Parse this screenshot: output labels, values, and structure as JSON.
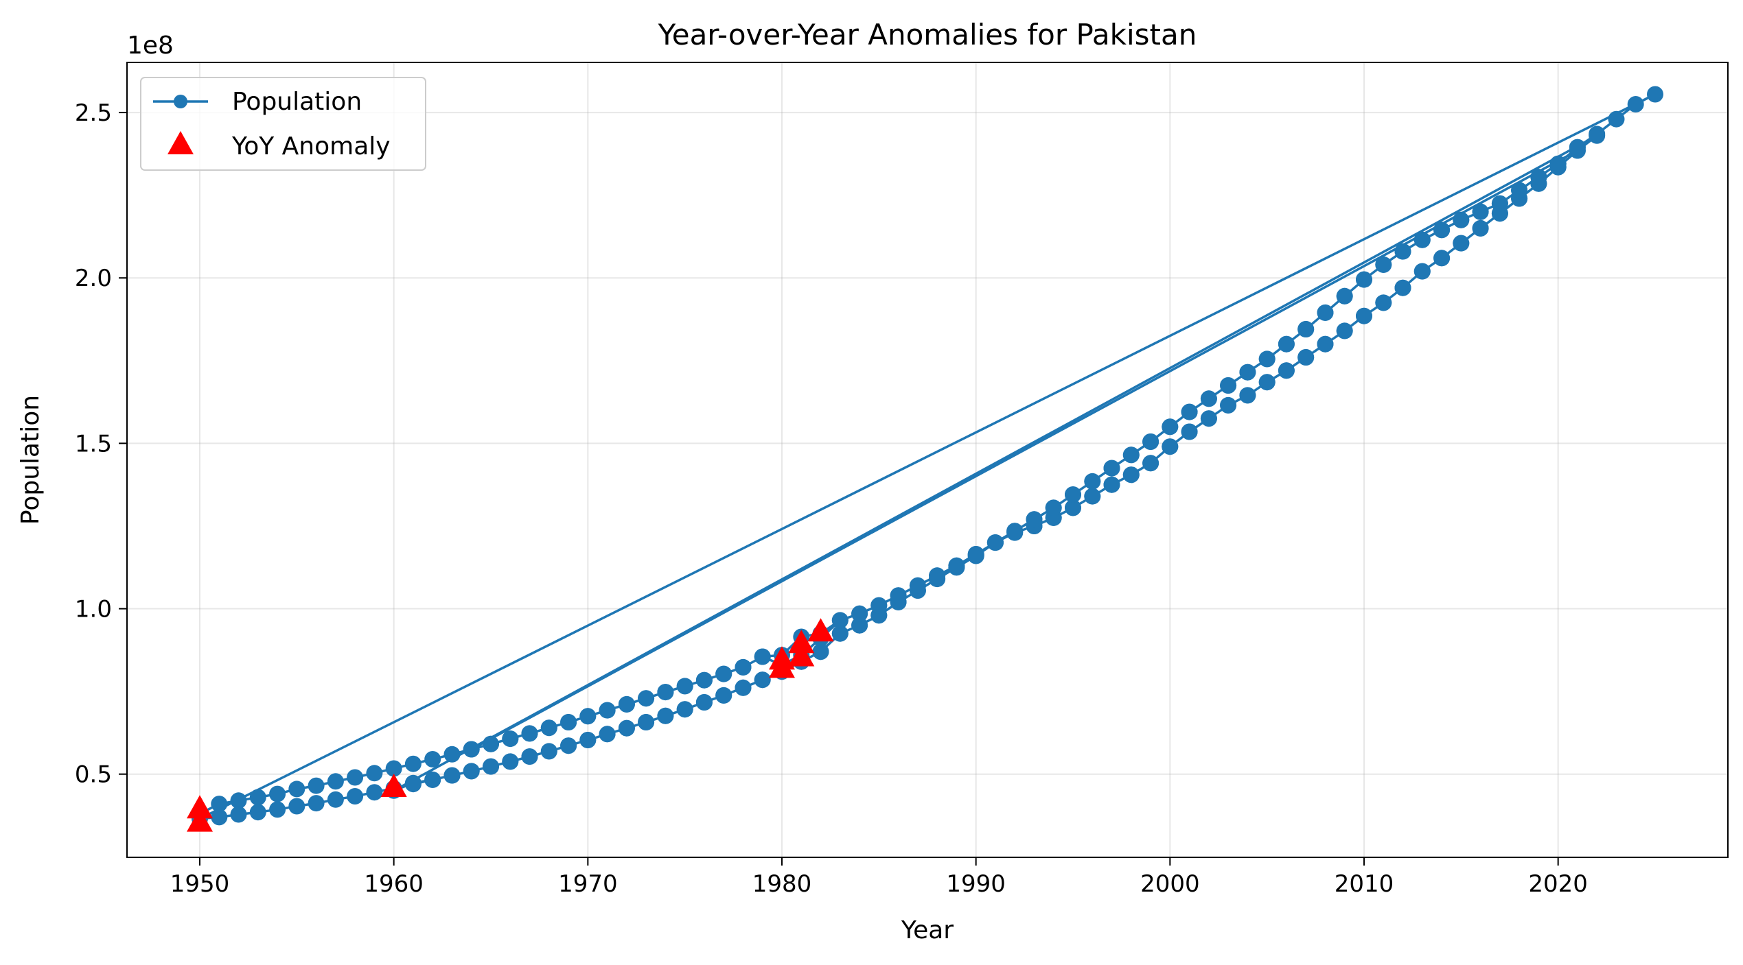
{
  "chart_data": {
    "type": "line",
    "title": "Year-over-Year Anomalies for Pakistan",
    "xlabel": "Year",
    "ylabel": "Population",
    "y_offset_label": "1e8",
    "xlim": [
      1946.25,
      2028.75
    ],
    "ylim": [
      0.2485,
      2.6515
    ],
    "y_scale": 100000000,
    "x_ticks": [
      1950,
      1960,
      1970,
      1980,
      1990,
      2000,
      2010,
      2020
    ],
    "x_tick_labels": [
      "1950",
      "1960",
      "1970",
      "1980",
      "1990",
      "2000",
      "2010",
      "2020"
    ],
    "y_ticks": [
      0.5,
      1.0,
      1.5,
      2.0,
      2.5
    ],
    "y_tick_labels": [
      "0.5",
      "1.0",
      "1.5",
      "2.0",
      "2.5"
    ],
    "grid": true,
    "legend_position": "upper-left",
    "colors": {
      "population": "#1f77b4",
      "anomaly": "#ff0000"
    },
    "legend": [
      {
        "label": "Population",
        "marker": "line-circle"
      },
      {
        "label": "YoY Anomaly",
        "marker": "triangle"
      }
    ],
    "series": [
      {
        "name": "Population",
        "segments": [
          {
            "x": [
              1950,
              1951,
              1952,
              1953,
              1954,
              1955,
              1956,
              1957,
              1958,
              1959,
              1960,
              1961,
              1962,
              1963,
              1964,
              1965,
              1966,
              1967,
              1968,
              1969,
              1970,
              1971,
              1972,
              1973,
              1974,
              1975,
              1976,
              1977,
              1978,
              1979,
              1980,
              1981,
              1982,
              1983,
              1984,
              1985,
              1986,
              1987,
              1988,
              1989,
              1990,
              1991,
              1992,
              1993,
              1994,
              1995,
              1996,
              1997,
              1998,
              1999,
              2000,
              2001,
              2002,
              2003,
              2004,
              2005,
              2006,
              2007,
              2008,
              2009,
              2010,
              2011,
              2012,
              2013,
              2014,
              2015,
              2016,
              2017,
              2018,
              2019,
              2020,
              2021,
              2022,
              2023,
              2024,
              2025
            ],
            "y": [
              0.38,
              0.41,
              0.42,
              0.43,
              0.44,
              0.455,
              0.465,
              0.478,
              0.49,
              0.503,
              0.517,
              0.531,
              0.545,
              0.56,
              0.575,
              0.591,
              0.607,
              0.623,
              0.64,
              0.657,
              0.675,
              0.693,
              0.711,
              0.729,
              0.748,
              0.766,
              0.784,
              0.803,
              0.823,
              0.855,
              0.86,
              0.915,
              0.925,
              0.965,
              0.985,
              1.01,
              1.04,
              1.07,
              1.1,
              1.13,
              1.165,
              1.2,
              1.235,
              1.27,
              1.305,
              1.345,
              1.385,
              1.425,
              1.465,
              1.505,
              1.55,
              1.595,
              1.635,
              1.675,
              1.715,
              1.755,
              1.8,
              1.845,
              1.895,
              1.945,
              1.995,
              2.04,
              2.08,
              2.115,
              2.145,
              2.175,
              2.2,
              2.225,
              2.265,
              2.305,
              2.345,
              2.395,
              2.435,
              2.48,
              2.525,
              2.555
            ]
          },
          {
            "x": [
              1950,
              1951,
              1952,
              1953,
              1954,
              1955,
              1956,
              1957,
              1958,
              1959,
              1960,
              1961,
              1962,
              1963,
              1964,
              1965,
              1966,
              1967,
              1968,
              1969,
              1970,
              1971,
              1972,
              1973,
              1974,
              1975,
              1976,
              1977,
              1978,
              1979,
              1980,
              1981,
              1982,
              1983,
              1984,
              1985,
              1986,
              1987,
              1988,
              1989,
              1990,
              1991,
              1992,
              1993,
              1994,
              1995,
              1996,
              1997,
              1998,
              1999,
              2000,
              2001,
              2002,
              2003,
              2004,
              2005,
              2006,
              2007,
              2008,
              2009,
              2010,
              2011,
              2012,
              2013,
              2014,
              2015,
              2016,
              2017,
              2018,
              2019,
              2020,
              2021,
              2022
            ],
            "y": [
              0.365,
              0.37,
              0.378,
              0.385,
              0.393,
              0.403,
              0.412,
              0.423,
              0.433,
              0.445,
              0.457,
              0.47,
              0.483,
              0.496,
              0.509,
              0.523,
              0.538,
              0.553,
              0.569,
              0.586,
              0.603,
              0.621,
              0.639,
              0.657,
              0.676,
              0.696,
              0.717,
              0.738,
              0.761,
              0.785,
              0.81,
              0.84,
              0.87,
              0.925,
              0.95,
              0.98,
              1.02,
              1.055,
              1.09,
              1.125,
              1.16,
              1.2,
              1.23,
              1.25,
              1.275,
              1.305,
              1.34,
              1.375,
              1.405,
              1.44,
              1.49,
              1.535,
              1.575,
              1.615,
              1.645,
              1.685,
              1.72,
              1.76,
              1.8,
              1.84,
              1.885,
              1.925,
              1.97,
              2.02,
              2.06,
              2.105,
              2.15,
              2.195,
              2.24,
              2.285,
              2.335,
              2.385,
              2.43
            ]
          },
          {
            "x": [
              1960,
              1961,
              1962,
              1963,
              1964,
              1965,
              1966,
              1967,
              1968,
              1969,
              1970,
              1971,
              1972,
              1973,
              1974,
              1975,
              1976,
              1977,
              1978,
              1979,
              1980,
              1981,
              1982,
              1983,
              1984,
              1985,
              1986,
              1987,
              1988,
              1989,
              1990,
              1991,
              1992,
              1993,
              1994,
              1995,
              1996,
              1997,
              1998,
              1999,
              2000,
              2001,
              2002,
              2003,
              2004,
              2005,
              2006,
              2007,
              2008,
              2009,
              2010,
              2011,
              2012,
              2013,
              2014,
              2015,
              2016,
              2017,
              2018,
              2019,
              2020,
              2021
            ],
            "y": [
              0.45,
              0.473,
              0.483,
              0.496,
              0.509,
              0.523,
              0.538,
              0.553,
              0.569,
              0.586,
              0.603,
              0.621,
              0.639,
              0.657,
              0.676,
              0.696,
              0.717,
              0.738,
              0.761,
              0.785,
              0.81,
              0.84,
              0.87,
              0.925,
              0.95,
              0.98,
              1.02,
              1.055,
              1.09,
              1.125,
              1.16,
              1.2,
              1.23,
              1.25,
              1.275,
              1.305,
              1.34,
              1.375,
              1.405,
              1.44,
              1.49,
              1.535,
              1.575,
              1.615,
              1.645,
              1.685,
              1.72,
              1.76,
              1.8,
              1.84,
              1.885,
              1.925,
              1.97,
              2.02,
              2.06,
              2.105,
              2.15,
              2.195,
              2.24,
              2.285,
              2.335,
              2.385
            ]
          },
          {
            "x": [
              1964,
              1965,
              1966,
              1967,
              1968,
              1969,
              1970,
              1971,
              1972,
              1973,
              1974,
              1975,
              1976,
              1977,
              1978,
              1979,
              1980,
              1981,
              1982,
              1983,
              1984,
              1985,
              1986,
              1987,
              1988,
              1989,
              1990,
              1991,
              1992,
              1993,
              1994,
              1995,
              1996,
              1997,
              1998,
              1999,
              2000,
              2001,
              2002,
              2003,
              2004,
              2005,
              2006,
              2007,
              2008,
              2009,
              2010,
              2011,
              2012,
              2013,
              2014,
              2015,
              2016,
              2017,
              2018,
              2019,
              2020,
              2021
            ],
            "y": [
              0.575,
              0.591,
              0.607,
              0.623,
              0.64,
              0.657,
              0.675,
              0.693,
              0.711,
              0.729,
              0.748,
              0.766,
              0.784,
              0.803,
              0.823,
              0.855,
              0.83,
              0.86,
              0.91,
              0.965,
              0.985,
              1.01,
              1.04,
              1.07,
              1.1,
              1.13,
              1.165,
              1.2,
              1.235,
              1.27,
              1.305,
              1.345,
              1.385,
              1.425,
              1.465,
              1.505,
              1.55,
              1.595,
              1.635,
              1.675,
              1.715,
              1.755,
              1.8,
              1.845,
              1.895,
              1.945,
              1.995,
              2.04,
              2.08,
              2.115,
              2.145,
              2.175,
              2.2,
              2.225,
              2.265,
              2.305,
              2.345,
              2.395
            ]
          }
        ]
      },
      {
        "name": "YoY Anomaly",
        "x": [
          1950,
          1950,
          1960,
          1980,
          1980,
          1981,
          1981,
          1982
        ],
        "y": [
          0.355,
          0.395,
          0.46,
          0.82,
          0.845,
          0.855,
          0.895,
          0.93
        ]
      }
    ]
  }
}
